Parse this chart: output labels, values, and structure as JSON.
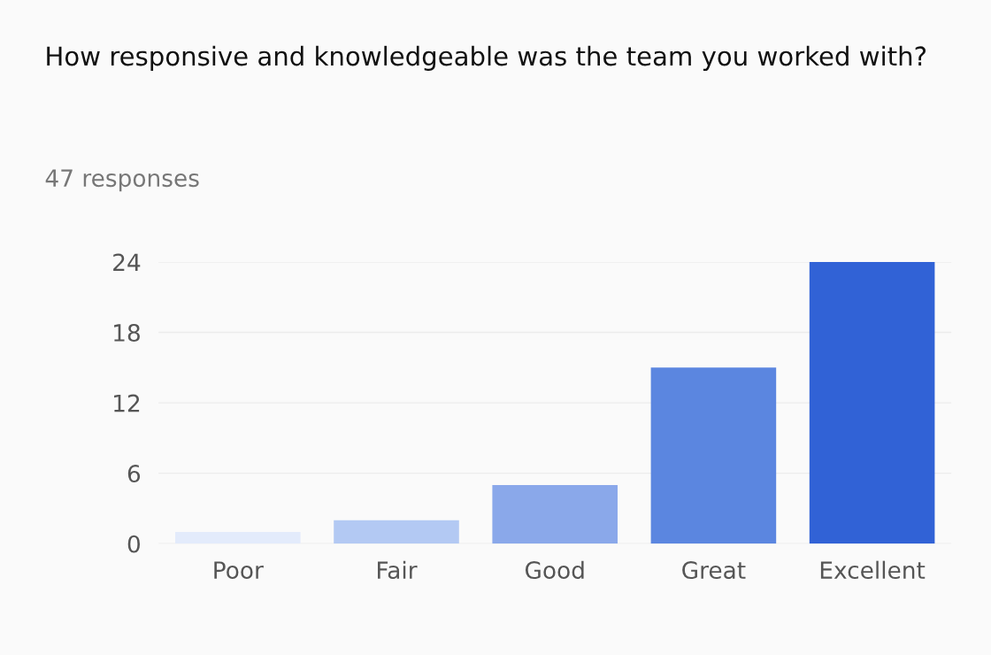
{
  "chart_data": {
    "type": "bar",
    "title": "How responsive and knowledgeable was the team you worked with?",
    "subtitle": "47 responses",
    "categories": [
      "Poor",
      "Fair",
      "Good",
      "Great",
      "Excellent"
    ],
    "values": [
      1,
      2,
      5,
      15,
      24
    ],
    "colors": [
      "#e3ebfb",
      "#b3c9f3",
      "#8aa8ea",
      "#5b86e0",
      "#3162d6"
    ],
    "ylim": [
      0,
      24
    ],
    "yticks": [
      0,
      6,
      12,
      18,
      24
    ],
    "grid": "y",
    "legend": false
  }
}
